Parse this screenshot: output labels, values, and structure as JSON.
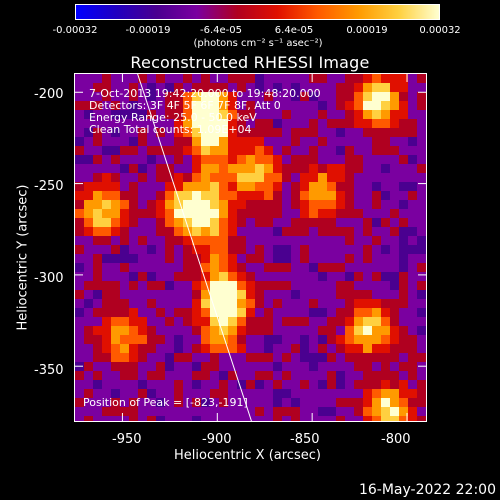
{
  "colorbar": {
    "ticks": [
      "-0.00032",
      "-0.00019",
      "-6.4e-05",
      "6.4e-05",
      "0.00019",
      "0.00032"
    ],
    "unit_label": "(photons cm⁻² s⁻¹ asec⁻²)",
    "colors": [
      "#0000ff",
      "#2000c0",
      "#4a0090",
      "#7a00a0",
      "#b00020",
      "#e01000",
      "#ff5a00",
      "#ff9a00",
      "#ffd040",
      "#ffffd0"
    ]
  },
  "title": "Reconstructed RHESSI Image",
  "overlay": {
    "time_range": "7-Oct-2013 19:42:20.000 to 19:48:20.000",
    "detectors": "Detectors: 3F 4F 5F 6F 7F 8F, Att 0",
    "energy_range": "Energy Range: 25.0 - 50.0 keV",
    "clean_counts": "Clean    Total counts: 1.09E+04",
    "peak_position": "Position of Peak = [-823,-191]"
  },
  "axes": {
    "x_label": "Heliocentric X (arcsec)",
    "y_label": "Heliocentric Y (arcsec)",
    "x_ticks": [
      "-950",
      "-900",
      "-850",
      "-800"
    ],
    "y_ticks": [
      "-200",
      "-250",
      "-300",
      "-350"
    ]
  },
  "footer_date": "16-May-2022 22:00",
  "chart_data": {
    "type": "heatmap",
    "title": "Reconstructed RHESSI Image",
    "xlabel": "Heliocentric X (arcsec)",
    "ylabel": "Heliocentric Y (arcsec)",
    "xlim": [
      -975,
      -790
    ],
    "ylim": [
      -380,
      -190
    ],
    "x_ticks": [
      -950,
      -900,
      -850,
      -800
    ],
    "y_ticks": [
      -200,
      -250,
      -300,
      -350
    ],
    "color_range": [
      -0.00032,
      0.00032
    ],
    "peak": [
      -823,
      -191
    ],
    "bright_regions": [
      {
        "x": -905,
        "y": -215,
        "level": 0.95
      },
      {
        "x": -915,
        "y": -265,
        "level": 1.0
      },
      {
        "x": -895,
        "y": -315,
        "level": 0.9
      },
      {
        "x": -880,
        "y": -245,
        "level": 0.8
      },
      {
        "x": -815,
        "y": -205,
        "level": 0.95
      },
      {
        "x": -960,
        "y": -265,
        "level": 0.75
      },
      {
        "x": -950,
        "y": -335,
        "level": 0.6
      },
      {
        "x": -820,
        "y": -330,
        "level": 0.75
      },
      {
        "x": -810,
        "y": -375,
        "level": 0.85
      },
      {
        "x": -845,
        "y": -255,
        "level": 0.6
      }
    ],
    "limb_line": [
      [
        -942,
        -190
      ],
      [
        -882,
        -380
      ]
    ]
  }
}
